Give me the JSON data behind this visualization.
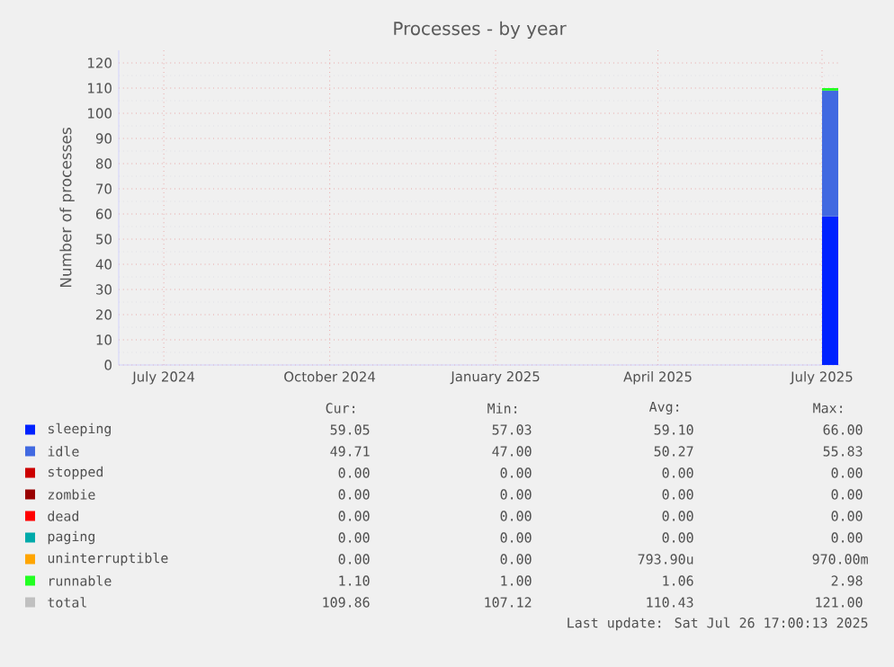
{
  "chart_data": {
    "type": "area",
    "stacked": true,
    "title": "Processes - by year",
    "ylabel": "Number of processes",
    "xlim": [
      "2024-06-21",
      "2025-07-26"
    ],
    "ylim": [
      0,
      125
    ],
    "xticks": [
      {
        "value": "2024-07-16",
        "label": "July 2024"
      },
      {
        "value": "2024-10-16",
        "label": "October 2024"
      },
      {
        "value": "2025-01-16",
        "label": "January 2025"
      },
      {
        "value": "2025-04-16",
        "label": "April 2025"
      },
      {
        "value": "2025-07-16",
        "label": "July 2025"
      }
    ],
    "yticks": [
      0,
      10,
      20,
      30,
      40,
      50,
      60,
      70,
      80,
      90,
      100,
      110,
      120
    ],
    "grid": true,
    "legend": "bottom",
    "x": [
      "2025-07-16",
      "2025-07-25"
    ],
    "series": [
      {
        "name": "sleeping",
        "color": "#0022ff",
        "values": [
          59,
          59
        ]
      },
      {
        "name": "idle",
        "color": "#4169e1",
        "values": [
          50,
          50
        ]
      },
      {
        "name": "stopped",
        "color": "#cc0000",
        "values": [
          null,
          null
        ]
      },
      {
        "name": "zombie",
        "color": "#990000",
        "values": [
          null,
          null
        ]
      },
      {
        "name": "dead",
        "color": "#ff0000",
        "values": [
          null,
          null
        ]
      },
      {
        "name": "paging",
        "color": "#00aaaa",
        "values": [
          null,
          null
        ]
      },
      {
        "name": "uninterruptible",
        "color": "#ffa500",
        "values": [
          null,
          null
        ]
      },
      {
        "name": "runnable",
        "color": "#22ff22",
        "values": [
          1,
          1
        ]
      },
      {
        "name": "total",
        "color": "#c0c0c0",
        "values": [
          null,
          null
        ]
      }
    ],
    "annotations": [
      "Cur:",
      "Min:",
      "Avg:",
      "Max:",
      "59.05",
      "57.03",
      "59.10",
      "66.00",
      "49.71",
      "47.00",
      "50.27",
      "55.83",
      "0.00",
      "0.00",
      "0.00",
      "0.00",
      "0.00",
      "0.00",
      "0.00",
      "0.00",
      "0.00",
      "0.00",
      "0.00",
      "0.00",
      "0.00",
      "0.00",
      "0.00",
      "0.00",
      "0.00",
      "0.00",
      "793.90u",
      "970.00m",
      "1.10",
      "1.00",
      "1.06",
      "2.98",
      "109.86",
      "107.12",
      "110.43",
      "121.00",
      "Last update: Sat Jul 26 17:00:13 2025"
    ]
  }
}
